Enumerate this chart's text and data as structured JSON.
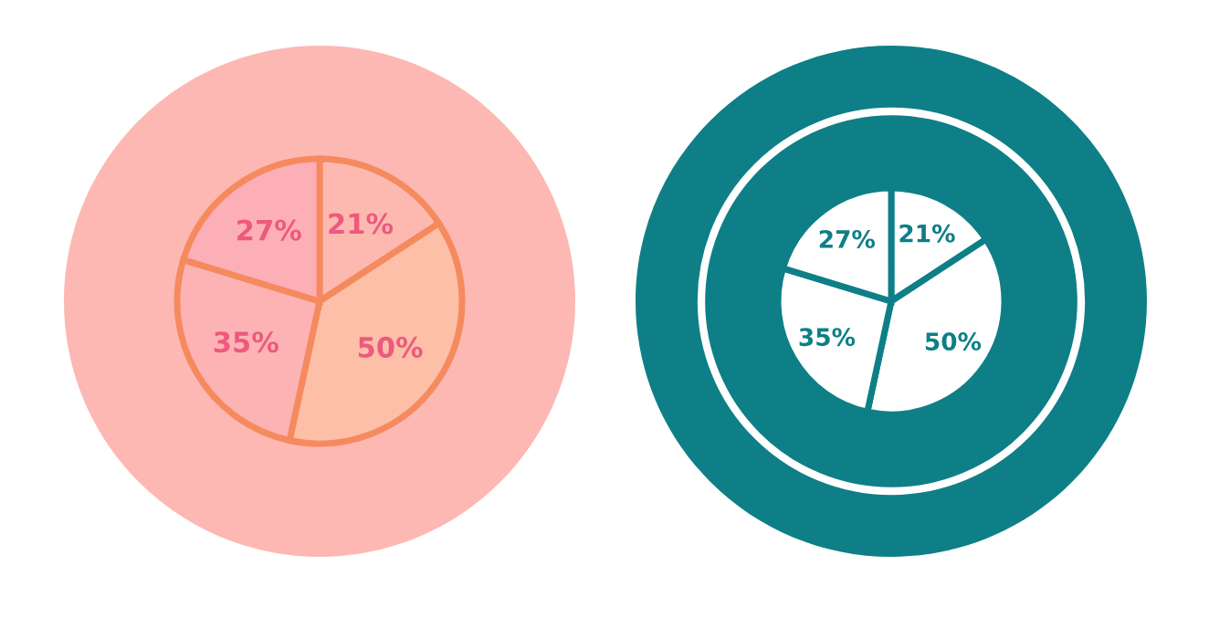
{
  "chart_data": [
    {
      "type": "pie",
      "categories": [
        null,
        null,
        null,
        null
      ],
      "values": [
        21,
        50,
        35,
        27
      ],
      "value_labels": [
        "21%",
        "50%",
        "35%",
        "27%"
      ],
      "colors": [
        "#fdb9b0",
        "#fdbfa8",
        "#fdb3b4",
        "#fdafb8"
      ]
    },
    {
      "type": "pie",
      "categories": [
        null,
        null,
        null,
        null
      ],
      "values": [
        21,
        50,
        35,
        27
      ],
      "value_labels": [
        "21%",
        "50%",
        "35%",
        "27%"
      ],
      "colors": [
        "#ffffff",
        "#ffffff",
        "#ffffff",
        "#ffffff"
      ]
    }
  ]
}
